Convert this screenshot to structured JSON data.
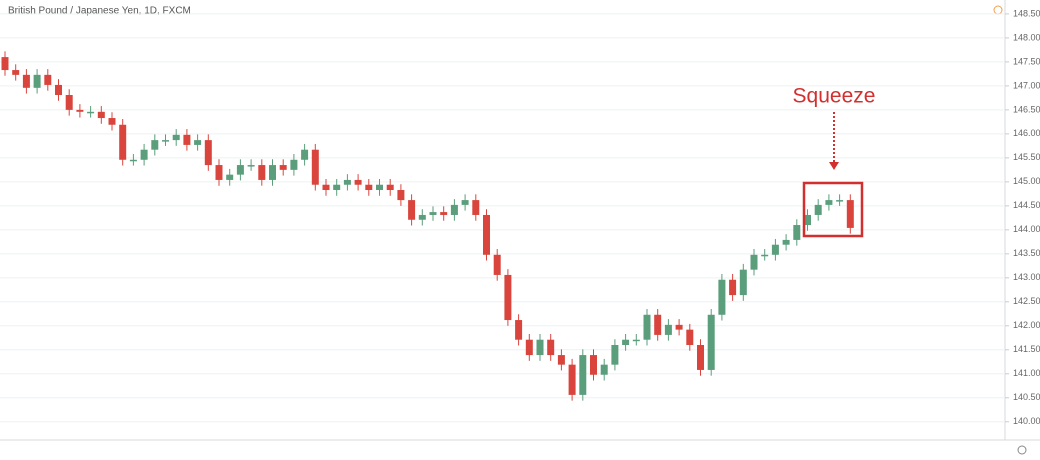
{
  "chart_data": {
    "type": "candlestick",
    "title": "British Pound / Japanese Yen, 1D, FXCM",
    "annotation": "Squeeze",
    "up_color": "#5a9e7c",
    "down_color": "#d9453d",
    "annotation_color": "#d32f2f",
    "grid": true,
    "ylim": [
      139.62,
      148.79
    ],
    "yticks": [
      {
        "value": 140.0,
        "label": "140.000"
      },
      {
        "value": 140.5,
        "label": "140.500"
      },
      {
        "value": 141.0,
        "label": "141.000"
      },
      {
        "value": 141.5,
        "label": "141.500"
      },
      {
        "value": 142.0,
        "label": "142.000"
      },
      {
        "value": 142.5,
        "label": "142.500"
      },
      {
        "value": 143.0,
        "label": "143.000"
      },
      {
        "value": 143.5,
        "label": "143.500"
      },
      {
        "value": 144.0,
        "label": "144.000"
      },
      {
        "value": 144.5,
        "label": "144.500"
      },
      {
        "value": 145.0,
        "label": "145.000"
      },
      {
        "value": 145.5,
        "label": "145.500"
      },
      {
        "value": 146.0,
        "label": "146.000"
      },
      {
        "value": 146.5,
        "label": "146.500"
      },
      {
        "value": 147.0,
        "label": "147.000"
      },
      {
        "value": 147.5,
        "label": "147.500"
      },
      {
        "value": 148.0,
        "label": "148.000"
      },
      {
        "value": 148.5,
        "label": "148.500"
      }
    ],
    "open": [
      147.6,
      147.33,
      147.23,
      146.96,
      147.23,
      147.02,
      146.81,
      146.5,
      146.46,
      146.46,
      146.33,
      146.19,
      145.46,
      145.46,
      145.67,
      145.87,
      145.87,
      145.98,
      145.77,
      145.87,
      145.35,
      145.04,
      145.15,
      145.35,
      145.35,
      145.04,
      145.35,
      145.25,
      145.46,
      145.67,
      144.94,
      144.83,
      144.94,
      145.04,
      144.94,
      144.83,
      144.94,
      144.83,
      144.62,
      144.21,
      144.31,
      144.37,
      144.31,
      144.52,
      144.62,
      144.31,
      143.48,
      143.06,
      142.12,
      141.71,
      141.39,
      141.71,
      141.39,
      141.19,
      140.56,
      141.39,
      140.98,
      141.19,
      141.6,
      141.71,
      141.71,
      142.23,
      141.81,
      142.02,
      141.92,
      141.6,
      141.08,
      142.23,
      142.96,
      142.64,
      143.17,
      143.48,
      143.48,
      143.69,
      143.79,
      144.1,
      144.31,
      144.52,
      144.62,
      144.62
    ],
    "high": [
      147.72,
      147.45,
      147.35,
      147.35,
      147.35,
      147.14,
      146.93,
      146.62,
      146.58,
      146.58,
      146.45,
      146.31,
      145.58,
      145.79,
      145.99,
      145.99,
      146.1,
      146.1,
      145.99,
      145.99,
      145.47,
      145.27,
      145.47,
      145.47,
      145.47,
      145.47,
      145.47,
      145.58,
      145.79,
      145.79,
      145.06,
      145.06,
      145.16,
      145.16,
      145.06,
      145.06,
      145.06,
      144.95,
      144.74,
      144.43,
      144.49,
      144.49,
      144.64,
      144.74,
      144.74,
      144.43,
      143.6,
      143.18,
      142.24,
      141.83,
      141.83,
      141.83,
      141.51,
      141.31,
      141.51,
      141.51,
      141.31,
      141.72,
      141.83,
      141.83,
      142.35,
      142.35,
      142.14,
      142.14,
      142.04,
      141.72,
      142.35,
      143.08,
      143.08,
      143.29,
      143.6,
      143.6,
      143.81,
      143.91,
      144.22,
      144.43,
      144.64,
      144.74,
      144.74,
      144.74
    ],
    "low": [
      147.21,
      147.11,
      146.84,
      146.84,
      146.9,
      146.69,
      146.38,
      146.34,
      146.34,
      146.21,
      146.07,
      145.34,
      145.34,
      145.34,
      145.55,
      145.75,
      145.75,
      145.65,
      145.65,
      145.23,
      144.92,
      144.92,
      145.03,
      145.23,
      144.92,
      144.92,
      145.13,
      145.13,
      145.34,
      144.82,
      144.71,
      144.71,
      144.82,
      144.82,
      144.71,
      144.71,
      144.71,
      144.5,
      144.09,
      144.09,
      144.19,
      144.19,
      144.19,
      144.4,
      144.19,
      143.36,
      142.94,
      142.0,
      141.59,
      141.27,
      141.27,
      141.27,
      141.07,
      140.44,
      140.44,
      140.86,
      140.86,
      141.07,
      141.48,
      141.59,
      141.59,
      141.69,
      141.69,
      141.8,
      141.48,
      140.96,
      140.96,
      142.11,
      142.52,
      142.52,
      143.05,
      143.36,
      143.36,
      143.57,
      143.67,
      143.98,
      144.19,
      144.4,
      144.5,
      143.92
    ],
    "close": [
      147.33,
      147.23,
      146.96,
      147.23,
      147.02,
      146.81,
      146.5,
      146.46,
      146.46,
      146.33,
      146.19,
      145.46,
      145.46,
      145.67,
      145.87,
      145.87,
      145.98,
      145.77,
      145.87,
      145.35,
      145.04,
      145.15,
      145.35,
      145.35,
      145.04,
      145.35,
      145.25,
      145.46,
      145.67,
      144.94,
      144.83,
      144.94,
      145.04,
      144.94,
      144.83,
      144.94,
      144.83,
      144.62,
      144.21,
      144.31,
      144.37,
      144.31,
      144.52,
      144.62,
      144.31,
      143.48,
      143.06,
      142.12,
      141.71,
      141.39,
      141.71,
      141.39,
      141.19,
      140.56,
      141.39,
      140.98,
      141.19,
      141.6,
      141.71,
      141.71,
      142.23,
      141.81,
      142.02,
      141.92,
      141.6,
      141.08,
      142.23,
      142.96,
      142.64,
      143.17,
      143.48,
      143.48,
      143.69,
      143.79,
      144.1,
      144.31,
      144.52,
      144.62,
      144.62,
      144.04
    ]
  }
}
